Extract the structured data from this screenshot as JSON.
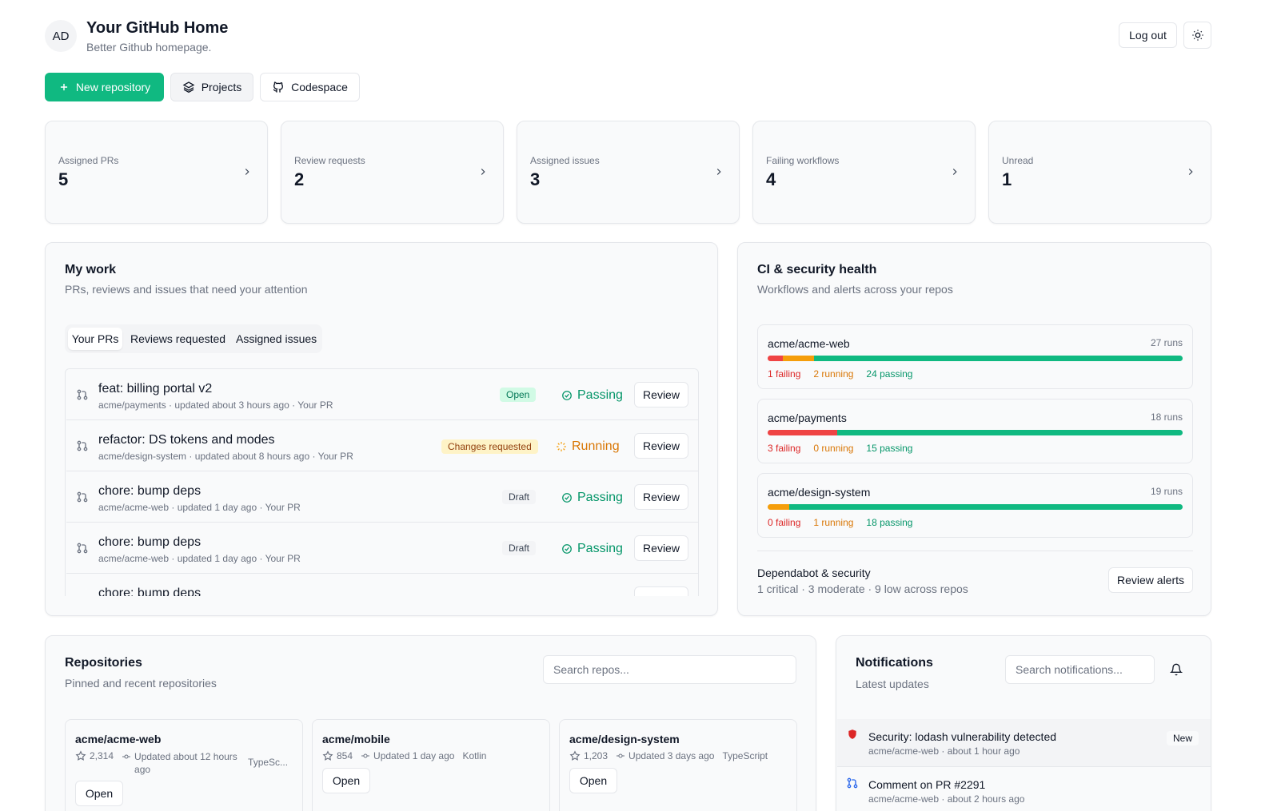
{
  "header": {
    "avatar": "AD",
    "title": "Your GitHub Home",
    "subtitle": "Better Github homepage.",
    "logout_label": "Log out"
  },
  "actions": {
    "new_repo": "New repository",
    "projects": "Projects",
    "codespace": "Codespace"
  },
  "stats": [
    {
      "label": "Assigned PRs",
      "value": "5"
    },
    {
      "label": "Review requests",
      "value": "2"
    },
    {
      "label": "Assigned issues",
      "value": "3"
    },
    {
      "label": "Failing workflows",
      "value": "4"
    },
    {
      "label": "Unread",
      "value": "1"
    }
  ],
  "my_work": {
    "title": "My work",
    "subtitle": "PRs, reviews and issues that need your attention",
    "tabs": [
      "Your PRs",
      "Reviews requested",
      "Assigned issues"
    ],
    "review_label": "Review",
    "items": [
      {
        "title": "feat: billing portal v2",
        "meta": "acme/payments · updated about 3 hours ago · Your PR",
        "badge": "Open",
        "status": "Passing"
      },
      {
        "title": "refactor: DS tokens and modes",
        "meta": "acme/design-system · updated about 8 hours ago · Your PR",
        "badge": "Changes requested",
        "status": "Running"
      },
      {
        "title": "chore: bump deps",
        "meta": "acme/acme-web · updated 1 day ago · Your PR",
        "badge": "Draft",
        "status": "Passing"
      },
      {
        "title": "chore: bump deps",
        "meta": "acme/acme-web · updated 1 day ago · Your PR",
        "badge": "Draft",
        "status": "Passing"
      },
      {
        "title": "chore: bump deps"
      }
    ]
  },
  "ci": {
    "title": "CI & security health",
    "subtitle": "Workflows and alerts across your repos",
    "repos": [
      {
        "name": "acme/acme-web",
        "runs": "27 runs",
        "failing": 1,
        "running": 2,
        "passing": 24,
        "failing_label": "1 failing",
        "running_label": "2 running",
        "passing_label": "24 passing"
      },
      {
        "name": "acme/payments",
        "runs": "18 runs",
        "failing": 3,
        "running": 0,
        "passing": 15,
        "failing_label": "3 failing",
        "running_label": "0 running",
        "passing_label": "15 passing"
      },
      {
        "name": "acme/design-system",
        "runs": "19 runs",
        "failing": 0,
        "running": 1,
        "passing": 18,
        "failing_label": "0 failing",
        "running_label": "1 running",
        "passing_label": "18 passing"
      }
    ],
    "dependabot_title": "Dependabot & security",
    "dependabot_summary": "1 critical · 3 moderate · 9 low across repos",
    "review_alerts": "Review alerts"
  },
  "repositories": {
    "title": "Repositories",
    "subtitle": "Pinned and recent repositories",
    "search_placeholder": "Search repos...",
    "open_label": "Open",
    "items": [
      {
        "name": "acme/acme-web",
        "stars": "2,314",
        "updated": "Updated about 12 hours ago",
        "lang": "TypeSc..."
      },
      {
        "name": "acme/mobile",
        "stars": "854",
        "updated": "Updated 1 day ago",
        "lang": "Kotlin"
      },
      {
        "name": "acme/design-system",
        "stars": "1,203",
        "updated": "Updated 3 days ago",
        "lang": "TypeScript"
      }
    ]
  },
  "notifications": {
    "title": "Notifications",
    "subtitle": "Latest updates",
    "search_placeholder": "Search notifications...",
    "items": [
      {
        "title": "Security: lodash vulnerability detected",
        "meta": "acme/acme-web · about 1 hour ago",
        "badge": "New"
      },
      {
        "title": "Comment on PR #2291",
        "meta": "acme/acme-web · about 2 hours ago"
      }
    ]
  },
  "colors": {
    "accent": "#10b981",
    "failing": "#ef4444",
    "running": "#f59e0b",
    "passing": "#10b981"
  }
}
